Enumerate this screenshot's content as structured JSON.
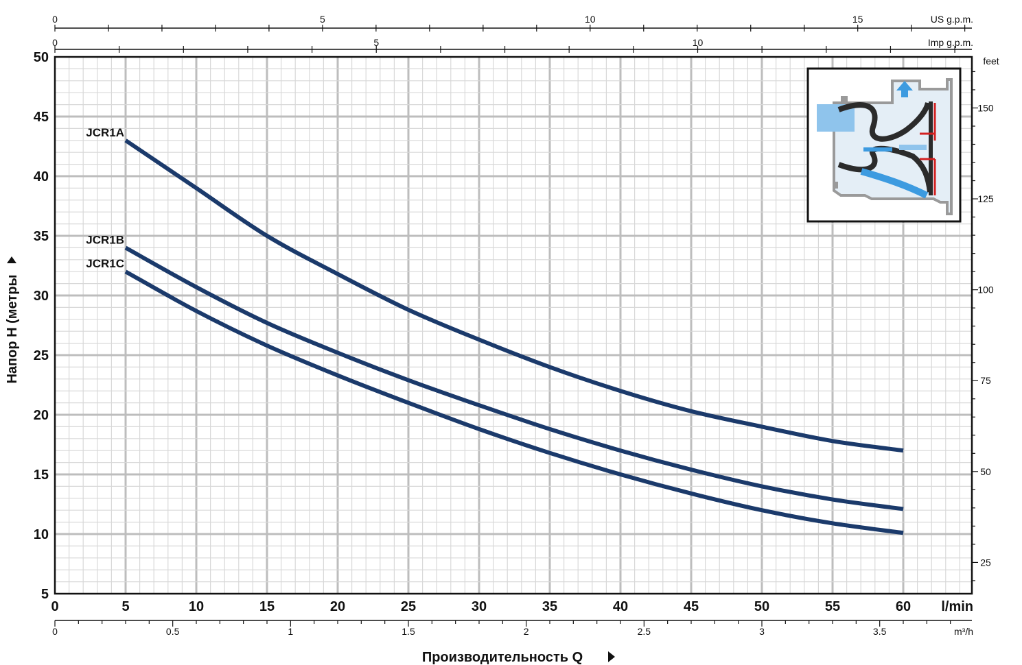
{
  "chart_data": {
    "type": "line",
    "title": "",
    "xlabel": "Производительность Q",
    "ylabel": "Напор H (метры",
    "xlim": [
      0,
      65
    ],
    "ylim": [
      5,
      50
    ],
    "grid": true,
    "x_unit": "l/min",
    "x_ticks": [
      0,
      5,
      10,
      15,
      20,
      25,
      30,
      35,
      40,
      45,
      50,
      55,
      60
    ],
    "y_ticks": [
      5,
      10,
      15,
      20,
      25,
      30,
      35,
      40,
      45,
      50
    ],
    "series": [
      {
        "name": "JCR1A",
        "x": [
          5,
          10,
          15,
          20,
          25,
          30,
          35,
          40,
          45,
          50,
          55,
          60
        ],
        "y": [
          43,
          39,
          35,
          31.8,
          28.8,
          26.3,
          24,
          22,
          20.3,
          19,
          17.8,
          17
        ]
      },
      {
        "name": "JCR1B",
        "x": [
          5,
          10,
          15,
          20,
          25,
          30,
          35,
          40,
          45,
          50,
          55,
          60
        ],
        "y": [
          34,
          30.7,
          27.7,
          25.2,
          22.9,
          20.8,
          18.8,
          17,
          15.4,
          14,
          12.9,
          12.1
        ]
      },
      {
        "name": "JCR1C",
        "x": [
          5,
          10,
          15,
          20,
          25,
          30,
          35,
          40,
          45,
          50,
          55,
          60
        ],
        "y": [
          32,
          28.7,
          25.8,
          23.3,
          21,
          18.8,
          16.8,
          15,
          13.4,
          12,
          10.9,
          10.1
        ]
      }
    ],
    "secondary_axes": {
      "us_gpm": {
        "label": "US g.p.m.",
        "ticks": [
          0,
          5,
          10,
          15
        ]
      },
      "imp_gpm": {
        "label": "Imp g.p.m.",
        "ticks": [
          0,
          5,
          10
        ]
      },
      "feet": {
        "label": "feet",
        "ticks": [
          25,
          50,
          75,
          100,
          125,
          150
        ]
      },
      "m3h": {
        "label": "m³/h",
        "ticks": [
          "0",
          "0.5",
          "1",
          "1.5",
          "2",
          "2.5",
          "3",
          "3.5"
        ]
      }
    },
    "colors": {
      "curve": "#1b3a6b",
      "grid_minor": "#d8d8d8",
      "grid_major": "#bdbdbd",
      "frame": "#111111",
      "water": "#3d9be0"
    }
  }
}
